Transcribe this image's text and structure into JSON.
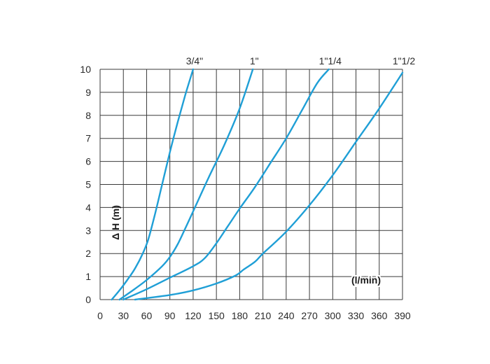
{
  "chart_data": {
    "type": "line",
    "xlabel": "(l/min)",
    "ylabel": "Δ H (m)",
    "x_ticks": [
      "0",
      "30",
      "60",
      "90",
      "120",
      "150",
      "180",
      "210",
      "240",
      "270",
      "300",
      "330",
      "360",
      "390"
    ],
    "y_ticks": [
      "0",
      "1",
      "2",
      "3",
      "4",
      "5",
      "6",
      "7",
      "8",
      "9",
      "10"
    ],
    "xlim": [
      0,
      390
    ],
    "ylim": [
      0,
      10
    ],
    "grid": true,
    "line_color": "#1f9fd6",
    "series": [
      {
        "name": "3/4\"",
        "x": [
          15,
          25,
          35,
          45,
          55,
          62,
          70,
          80,
          90,
          100,
          110,
          120
        ],
        "y": [
          0,
          0.4,
          0.85,
          1.35,
          2.0,
          2.6,
          3.6,
          5.0,
          6.4,
          7.7,
          8.9,
          10.0
        ]
      },
      {
        "name": "1\"",
        "x": [
          25,
          40,
          60,
          80,
          90,
          100,
          110,
          125,
          140,
          160,
          180,
          197
        ],
        "y": [
          0,
          0.35,
          0.85,
          1.45,
          1.85,
          2.4,
          3.1,
          4.2,
          5.3,
          6.7,
          8.3,
          10.0
        ]
      },
      {
        "name": "1\"1/4",
        "x": [
          30,
          60,
          90,
          120,
          135,
          150,
          165,
          180,
          200,
          220,
          240,
          260,
          280,
          295
        ],
        "y": [
          0,
          0.45,
          0.95,
          1.45,
          1.8,
          2.45,
          3.2,
          3.95,
          4.9,
          5.95,
          7.0,
          8.2,
          9.4,
          10.0
        ]
      },
      {
        "name": "1\"1/2",
        "x": [
          45,
          90,
          120,
          150,
          175,
          185,
          200,
          210,
          240,
          270,
          300,
          330,
          360,
          390
        ],
        "y": [
          0,
          0.2,
          0.4,
          0.7,
          1.05,
          1.3,
          1.65,
          2.0,
          2.95,
          4.1,
          5.4,
          6.85,
          8.3,
          9.85
        ]
      }
    ]
  }
}
